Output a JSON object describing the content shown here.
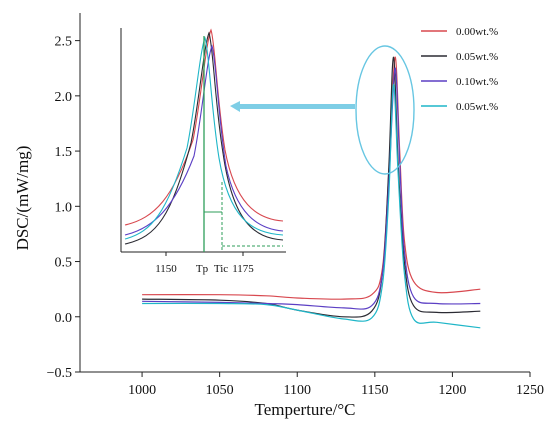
{
  "chart_data": {
    "type": "line",
    "title": "",
    "xlabel": "Temperture/°C",
    "ylabel": "DSC/(mW/mg)",
    "xlim": [
      960,
      1250
    ],
    "ylim": [
      -0.5,
      2.75
    ],
    "xticks": [
      1000,
      1050,
      1100,
      1150,
      1200,
      1250
    ],
    "yticks": [
      -0.5,
      0.0,
      0.5,
      1.0,
      1.5,
      2.0,
      2.5
    ],
    "ytick_labels": [
      "−0.5",
      "0.0",
      "0.5",
      "1.0",
      "1.5",
      "2.0",
      "2.5"
    ],
    "legend_position": "top-right",
    "grid": false,
    "series": [
      {
        "name": "0.00wt.%",
        "color": "#d8484f",
        "peak": {
          "x": 1163,
          "y": 2.35
        },
        "points": [
          [
            1000,
            0.2
          ],
          [
            1050,
            0.2
          ],
          [
            1080,
            0.19
          ],
          [
            1100,
            0.17
          ],
          [
            1130,
            0.16
          ],
          [
            1148,
            0.2
          ],
          [
            1155,
            0.45
          ],
          [
            1159,
            1.3
          ],
          [
            1163,
            2.35
          ],
          [
            1166,
            1.5
          ],
          [
            1169,
            0.7
          ],
          [
            1175,
            0.32
          ],
          [
            1190,
            0.22
          ],
          [
            1218,
            0.25
          ]
        ]
      },
      {
        "name": "0.05wt.%",
        "color": "#2b2b33",
        "peak": {
          "x": 1162,
          "y": 2.35
        },
        "points": [
          [
            1000,
            0.16
          ],
          [
            1050,
            0.15
          ],
          [
            1080,
            0.12
          ],
          [
            1100,
            0.06
          ],
          [
            1130,
            0.0
          ],
          [
            1148,
            0.05
          ],
          [
            1155,
            0.4
          ],
          [
            1159,
            1.35
          ],
          [
            1162,
            2.35
          ],
          [
            1165,
            1.4
          ],
          [
            1169,
            0.5
          ],
          [
            1175,
            0.1
          ],
          [
            1190,
            0.04
          ],
          [
            1218,
            0.05
          ]
        ]
      },
      {
        "name": "0.10wt.%",
        "color": "#5b3fc4",
        "peak": {
          "x": 1163,
          "y": 2.25
        },
        "points": [
          [
            1000,
            0.14
          ],
          [
            1050,
            0.13
          ],
          [
            1080,
            0.12
          ],
          [
            1100,
            0.11
          ],
          [
            1130,
            0.08
          ],
          [
            1148,
            0.1
          ],
          [
            1155,
            0.4
          ],
          [
            1159,
            1.2
          ],
          [
            1163,
            2.25
          ],
          [
            1166,
            1.4
          ],
          [
            1169,
            0.6
          ],
          [
            1175,
            0.18
          ],
          [
            1190,
            0.12
          ],
          [
            1218,
            0.12
          ]
        ]
      },
      {
        "name": "0.05wt.%",
        "color": "#1fb6c8",
        "peak": {
          "x": 1162,
          "y": 2.1
        },
        "points": [
          [
            1000,
            0.12
          ],
          [
            1050,
            0.12
          ],
          [
            1080,
            0.11
          ],
          [
            1100,
            0.06
          ],
          [
            1130,
            -0.02
          ],
          [
            1148,
            -0.01
          ],
          [
            1155,
            0.3
          ],
          [
            1159,
            1.1
          ],
          [
            1162,
            2.1
          ],
          [
            1165,
            1.3
          ],
          [
            1169,
            0.4
          ],
          [
            1175,
            -0.02
          ],
          [
            1190,
            -0.05
          ],
          [
            1218,
            -0.1
          ]
        ]
      }
    ],
    "inset": {
      "xticks": [
        1150,
        1175
      ],
      "xtick_labels": [
        "1150",
        "1175"
      ],
      "markers": [
        "Tp",
        "Tic"
      ]
    }
  }
}
